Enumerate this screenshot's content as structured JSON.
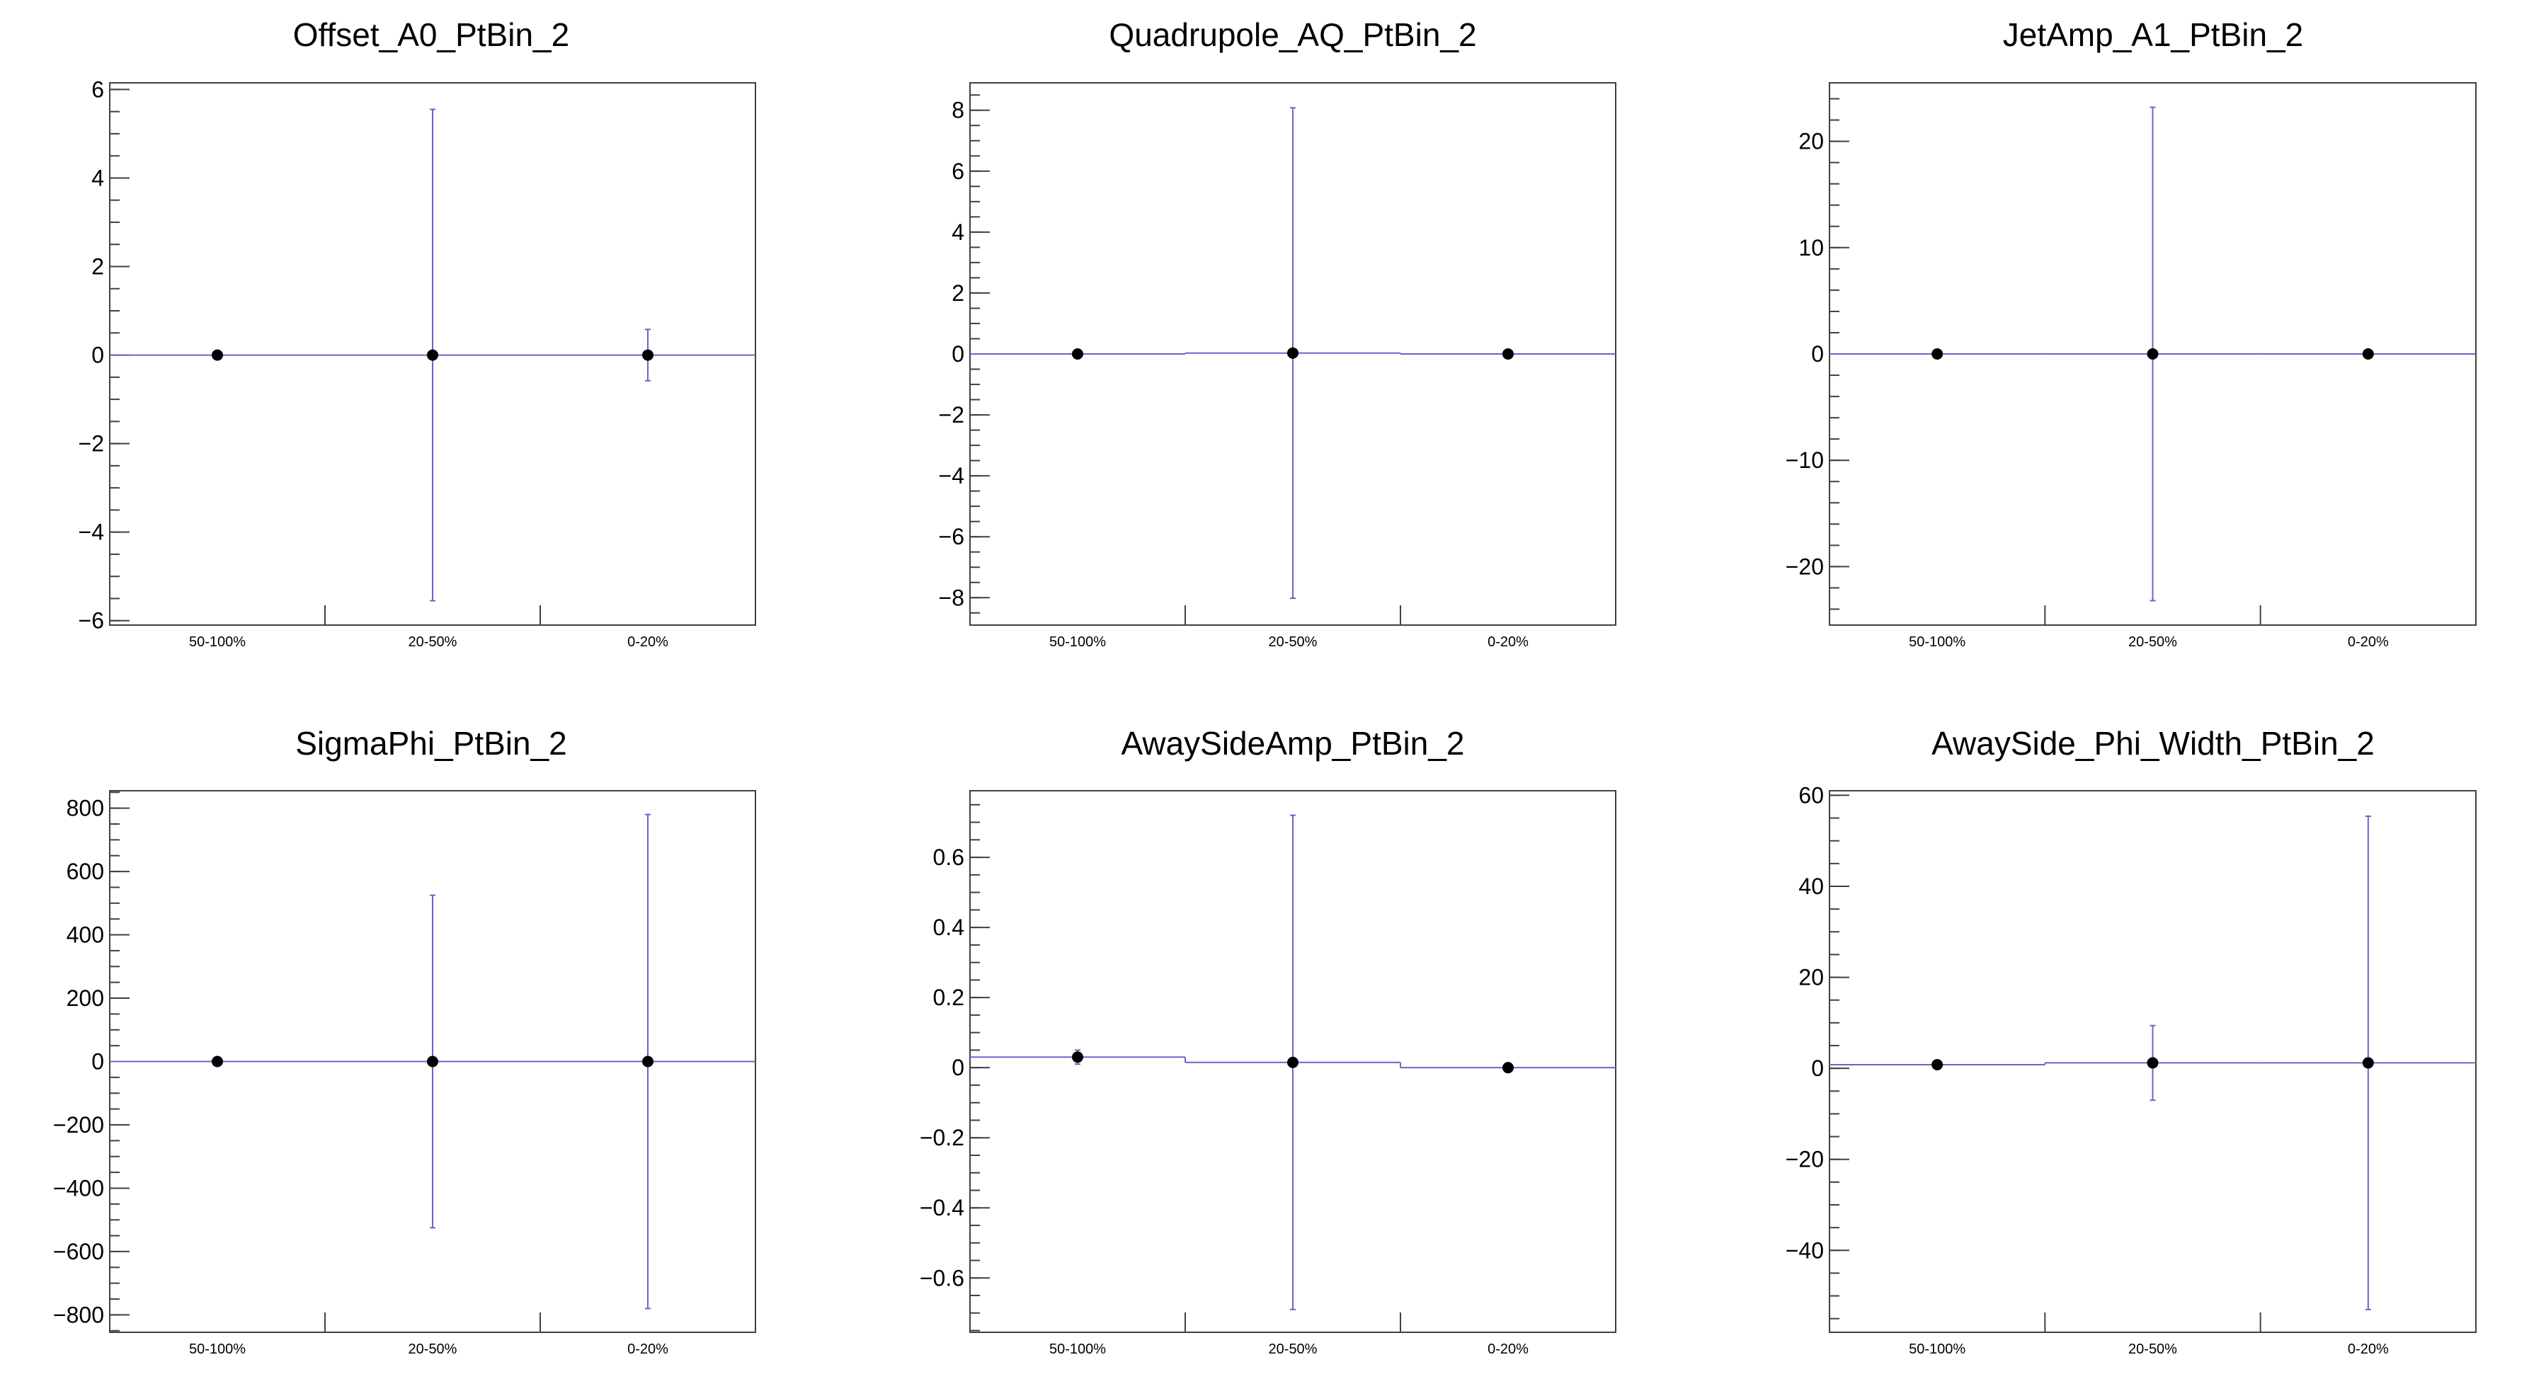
{
  "chart_data": [
    {
      "type": "scatter",
      "title": "Offset_A0_PtBin_2",
      "categories": [
        "50-100%",
        "20-50%",
        "0-20%"
      ],
      "values": [
        0,
        0,
        0
      ],
      "errors": [
        0,
        5.55,
        0.58
      ],
      "ylim": [
        -6.1,
        6.15
      ],
      "yticks": [
        -6,
        -4,
        -2,
        0,
        2,
        4,
        6
      ],
      "yticklabels": [
        "−6",
        "−4",
        "−2",
        "0",
        "2",
        "4",
        "6"
      ],
      "yminor": 0.5,
      "xlabel": "",
      "ylabel": ""
    },
    {
      "type": "scatter",
      "title": "Quadrupole_AQ_PtBin_2",
      "categories": [
        "50-100%",
        "20-50%",
        "0-20%"
      ],
      "values": [
        0,
        0.03,
        0
      ],
      "errors": [
        0,
        8.05,
        0
      ],
      "ylim": [
        -8.9,
        8.9
      ],
      "yticks": [
        -8,
        -6,
        -4,
        -2,
        0,
        2,
        4,
        6,
        8
      ],
      "yticklabels": [
        "−8",
        "−6",
        "−4",
        "−2",
        "0",
        "2",
        "4",
        "6",
        "8"
      ],
      "yminor": 0.5,
      "xlabel": "",
      "ylabel": ""
    },
    {
      "type": "scatter",
      "title": "JetAmp_A1_PtBin_2",
      "categories": [
        "50-100%",
        "20-50%",
        "0-20%"
      ],
      "values": [
        0,
        0,
        0
      ],
      "errors": [
        0,
        23.2,
        0
      ],
      "ylim": [
        -25.5,
        25.5
      ],
      "yticks": [
        -20,
        -10,
        0,
        10,
        20
      ],
      "yticklabels": [
        "−20",
        "−10",
        "0",
        "10",
        "20"
      ],
      "yminor": 2,
      "xlabel": "",
      "ylabel": ""
    },
    {
      "type": "scatter",
      "title": "SigmaPhi_PtBin_2",
      "categories": [
        "50-100%",
        "20-50%",
        "0-20%"
      ],
      "values": [
        0,
        0,
        0
      ],
      "errors": [
        0,
        525,
        780
      ],
      "ylim": [
        -855,
        855
      ],
      "yticks": [
        -800,
        -600,
        -400,
        -200,
        0,
        200,
        400,
        600,
        800
      ],
      "yticklabels": [
        "−800",
        "−600",
        "−400",
        "−200",
        "0",
        "200",
        "400",
        "600",
        "800"
      ],
      "yminor": 50,
      "xlabel": "",
      "ylabel": ""
    },
    {
      "type": "scatter",
      "title": "AwaySideAmp_PtBin_2",
      "categories": [
        "50-100%",
        "20-50%",
        "0-20%"
      ],
      "values": [
        0.03,
        0.015,
        0
      ],
      "errors": [
        0.02,
        0.705,
        0
      ],
      "ylim": [
        -0.755,
        0.79
      ],
      "yticks": [
        -0.6,
        -0.4,
        -0.2,
        0,
        0.2,
        0.4,
        0.6
      ],
      "yticklabels": [
        "−0.6",
        "−0.4",
        "−0.2",
        "0",
        "0.2",
        "0.4",
        "0.6"
      ],
      "yminor": 0.05,
      "xlabel": "",
      "ylabel": ""
    },
    {
      "type": "scatter",
      "title": "AwaySide_Phi_Width_PtBin_2",
      "categories": [
        "50-100%",
        "20-50%",
        "0-20%"
      ],
      "values": [
        0.8,
        1.2,
        1.2
      ],
      "errors": [
        0,
        8.2,
        54.2
      ],
      "ylim": [
        -58,
        61
      ],
      "yticks": [
        -40,
        -20,
        0,
        20,
        40,
        60
      ],
      "yticklabels": [
        "−40",
        "−20",
        "0",
        "20",
        "40",
        "60"
      ],
      "yminor": 5,
      "xlabel": "",
      "ylabel": ""
    }
  ],
  "style": {
    "frame_color": "#404040",
    "hist_color": "#6666cc",
    "marker_color": "#000000"
  }
}
